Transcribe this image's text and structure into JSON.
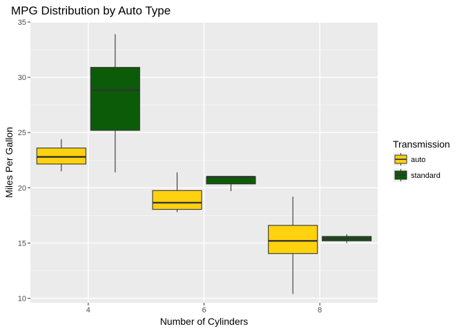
{
  "chart_data": {
    "type": "boxplot",
    "title": "MPG Distribution by Auto Type",
    "xlabel": "Number of Cylinders",
    "ylabel": "Miles Per Gallon",
    "categories": [
      "4",
      "6",
      "8"
    ],
    "ylim": [
      9.6,
      35.0
    ],
    "yticks": [
      10,
      15,
      20,
      25,
      30,
      35
    ],
    "grid": true,
    "legend": {
      "title": "Transmission",
      "position": "right"
    },
    "series": [
      {
        "name": "auto",
        "color": "#FFD20F",
        "boxes": [
          {
            "category": "4",
            "min": 21.5,
            "q1": 22.15,
            "median": 22.8,
            "q3": 23.6,
            "max": 24.4
          },
          {
            "category": "6",
            "min": 17.8,
            "q1": 18.05,
            "median": 18.65,
            "q3": 19.75,
            "max": 21.4
          },
          {
            "category": "8",
            "min": 10.4,
            "q1": 14.05,
            "median": 15.2,
            "q3": 16.6,
            "max": 19.2
          }
        ]
      },
      {
        "name": "standard",
        "color": "#0B5B08",
        "boxes": [
          {
            "category": "4",
            "min": 21.4,
            "q1": 25.2,
            "median": 28.85,
            "q3": 30.9,
            "max": 33.9
          },
          {
            "category": "6",
            "min": 19.7,
            "q1": 20.35,
            "median": 21.0,
            "q3": 21.0,
            "max": 21.0
          },
          {
            "category": "8",
            "min": 15.0,
            "q1": 15.2,
            "median": 15.4,
            "q3": 15.6,
            "max": 15.8
          }
        ]
      }
    ]
  }
}
